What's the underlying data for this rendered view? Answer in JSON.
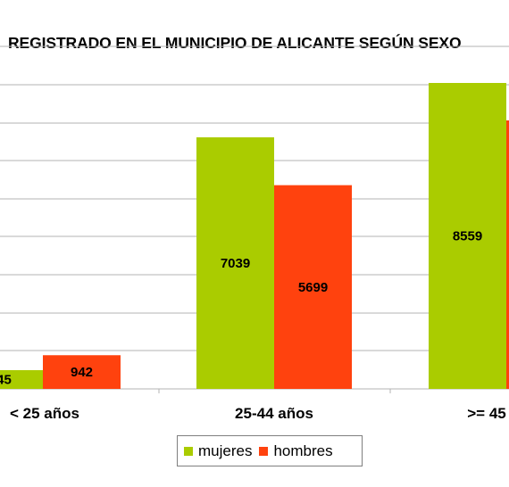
{
  "chart_data": {
    "type": "bar",
    "title": "REGISTRADO EN EL MUNICIPIO DE ALICANTE SEGÚN SEXO",
    "categories": [
      "< 25 años",
      "25-44 años",
      ">= 45"
    ],
    "series": [
      {
        "name": "mujeres",
        "color": "#aacc00",
        "values": [
          null,
          7039,
          8559
        ]
      },
      {
        "name": "hombres",
        "color": "#ff420e",
        "values": [
          942,
          5699,
          null
        ]
      }
    ],
    "data_labels": [
      [
        "45",
        "942"
      ],
      [
        "7039",
        "5699"
      ],
      [
        "8559",
        ""
      ]
    ],
    "grid": true,
    "legend_position": "bottom"
  }
}
